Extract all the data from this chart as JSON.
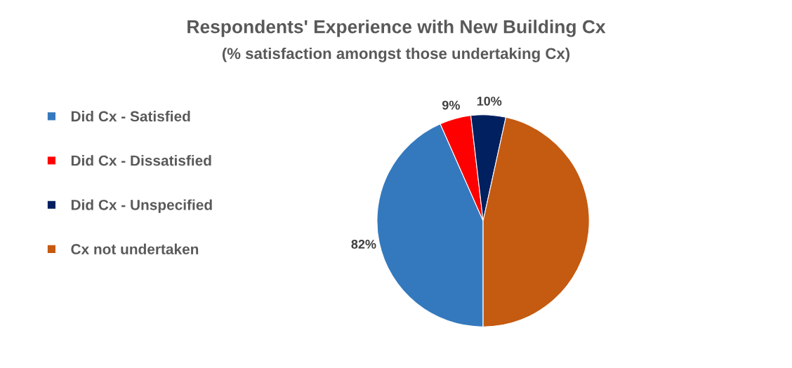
{
  "chart_data": {
    "type": "pie",
    "title": "Respondents' Experience with New Building Cx",
    "subtitle": "(% satisfaction amongst those undertaking Cx)",
    "categories": [
      "Did Cx - Satisfied",
      "Did Cx - Dissatisfied",
      "Did Cx - Unspecified",
      "Cx not undertaken"
    ],
    "values": [
      82,
      9,
      10,
      88
    ],
    "colors": [
      "#3479bd",
      "#ff0000",
      "#002060",
      "#c55a11"
    ],
    "value_labels": [
      "82%",
      "9%",
      "10%",
      null
    ],
    "legend": "left"
  }
}
